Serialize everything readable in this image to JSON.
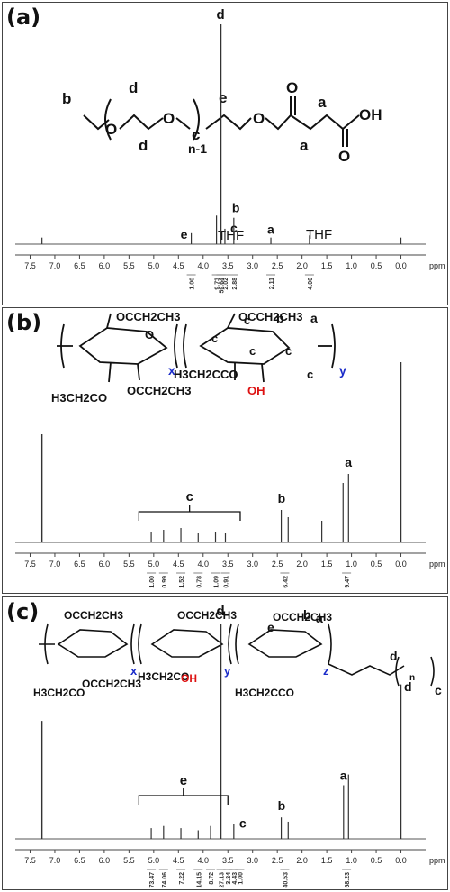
{
  "chart_data": [
    {
      "type": "line",
      "panel_label": "(a)",
      "x_unit": "ppm",
      "xlim": [
        7.8,
        -0.5
      ],
      "x_ticks": [
        "7.5",
        "7.0",
        "6.5",
        "6.0",
        "5.5",
        "5.0",
        "4.5",
        "4.0",
        "3.5",
        "3.0",
        "2.5",
        "2.0",
        "1.5",
        "1.0",
        "0.5",
        "0.0"
      ],
      "peaks": [
        {
          "ppm": 7.26,
          "height": 0.03
        },
        {
          "ppm": 4.24,
          "height": 0.05,
          "label": "e"
        },
        {
          "ppm": 3.73,
          "height": 0.13
        },
        {
          "ppm": 3.64,
          "height": 1.0,
          "label": "d"
        },
        {
          "ppm": 3.56,
          "height": 0.07,
          "label": "c"
        },
        {
          "ppm": 3.38,
          "height": 0.12,
          "label": "b"
        },
        {
          "ppm": 2.63,
          "height": 0.03,
          "label": "a"
        },
        {
          "ppm": 1.85,
          "height": 0.04
        },
        {
          "ppm": 0.0,
          "height": 0.03
        }
      ],
      "annotations": [
        "THF",
        "THF"
      ],
      "integrals": [
        "1.00",
        "9.73",
        "59.64",
        "2.02",
        "2.88",
        "2.11",
        "4.06"
      ],
      "structure": {
        "end_groups": [
          "O",
          "O",
          "OH"
        ],
        "repeat": "n-1",
        "letters": [
          "b",
          "d",
          "d",
          "c",
          "e",
          "a",
          "a"
        ]
      }
    },
    {
      "type": "line",
      "panel_label": "(b)",
      "x_unit": "ppm",
      "xlim": [
        7.8,
        -0.5
      ],
      "x_ticks": [
        "7.5",
        "7.0",
        "6.5",
        "6.0",
        "5.5",
        "5.0",
        "4.5",
        "4.0",
        "3.5",
        "3.0",
        "2.5",
        "2.0",
        "1.5",
        "1.0",
        "0.5",
        "0.0"
      ],
      "peaks": [
        {
          "ppm": 7.26,
          "height": 0.6
        },
        {
          "ppm": 5.05,
          "height": 0.06
        },
        {
          "ppm": 4.8,
          "height": 0.07
        },
        {
          "ppm": 4.45,
          "height": 0.08
        },
        {
          "ppm": 4.1,
          "height": 0.05
        },
        {
          "ppm": 3.75,
          "height": 0.06
        },
        {
          "ppm": 3.55,
          "height": 0.05
        },
        {
          "ppm": 2.42,
          "height": 0.18,
          "label": "b"
        },
        {
          "ppm": 2.28,
          "height": 0.14
        },
        {
          "ppm": 1.6,
          "height": 0.12
        },
        {
          "ppm": 1.17,
          "height": 0.33
        },
        {
          "ppm": 1.06,
          "height": 0.38,
          "label": "a"
        },
        {
          "ppm": 0.0,
          "height": 1.0
        }
      ],
      "group_labels": [
        "c"
      ],
      "integrals": [
        "1.00",
        "0.99",
        "1.52",
        "0.78",
        "1.09",
        "0.91",
        "6.42",
        "9.47"
      ],
      "structure": {
        "labels": [
          "OCCH2CH3",
          "O",
          "OCCH2CH3",
          "H3CH2CO",
          "OCCH2CH3",
          "OH",
          "H3CH2CCO",
          "O"
        ],
        "subscripts": [
          "x",
          "y"
        ],
        "letters": [
          "a",
          "b",
          "c",
          "c",
          "c",
          "c",
          "c"
        ]
      }
    },
    {
      "type": "line",
      "panel_label": "(c)",
      "x_unit": "ppm",
      "xlim": [
        7.8,
        -0.5
      ],
      "x_ticks": [
        "7.5",
        "7.0",
        "6.5",
        "6.0",
        "5.5",
        "5.0",
        "4.5",
        "4.0",
        "3.5",
        "3.0",
        "2.5",
        "2.0",
        "1.5",
        "1.0",
        "0.5",
        "0.0"
      ],
      "peaks": [
        {
          "ppm": 7.26,
          "height": 0.55
        },
        {
          "ppm": 5.05,
          "height": 0.05
        },
        {
          "ppm": 4.8,
          "height": 0.06
        },
        {
          "ppm": 4.45,
          "height": 0.05
        },
        {
          "ppm": 4.1,
          "height": 0.04
        },
        {
          "ppm": 3.85,
          "height": 0.06
        },
        {
          "ppm": 3.64,
          "height": 1.0,
          "label": "d"
        },
        {
          "ppm": 3.38,
          "height": 0.07,
          "label": "c"
        },
        {
          "ppm": 2.42,
          "height": 0.1,
          "label": "b"
        },
        {
          "ppm": 2.28,
          "height": 0.08
        },
        {
          "ppm": 1.16,
          "height": 0.25,
          "label": "a"
        },
        {
          "ppm": 1.06,
          "height": 0.3
        },
        {
          "ppm": 0.0,
          "height": 0.72
        }
      ],
      "group_labels": [
        "e"
      ],
      "integrals": [
        "73.47",
        "74.06",
        "7.22",
        "14.15",
        "8.72",
        "27.13",
        "3.24",
        "4.43",
        "1.00",
        "40.53",
        "58.23"
      ],
      "structure": {
        "labels": [
          "OCCH2CH3",
          "O",
          "H3CH2CO",
          "OCCH2CH3",
          "OH",
          "H3CH2CCO",
          "O"
        ],
        "subscripts": [
          "x",
          "y",
          "z",
          "n"
        ],
        "letters": [
          "a",
          "b",
          "c",
          "d",
          "d",
          "e"
        ]
      }
    }
  ]
}
